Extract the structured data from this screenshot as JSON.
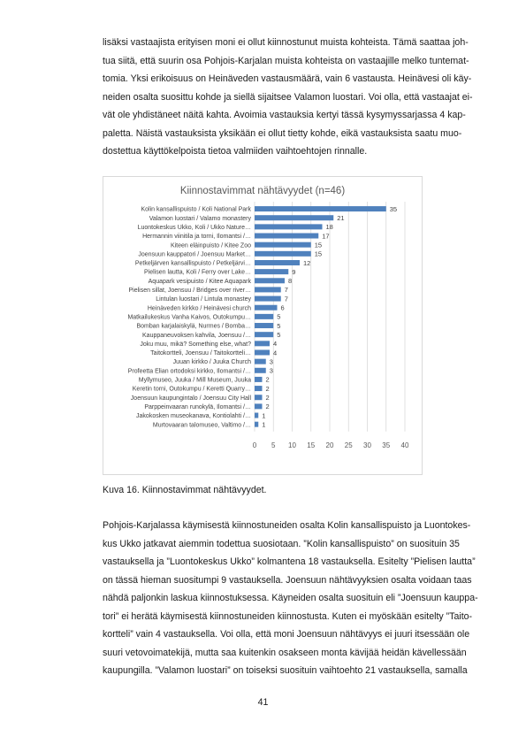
{
  "paragraph_1": [
    "lisäksi vastaajista erityisen moni ei ollut kiinnostunut muista kohteista. Tämä saattaa joh-",
    "tua siitä, että suurin osa Pohjois-Karjalan muista kohteista on vastaajille melko tuntemat-",
    "tomia. Yksi erikoisuus on Heinäveden vastausmäärä, vain 6 vastausta. Heinävesi oli käy-",
    "neiden osalta suosittu kohde ja siellä sijaitsee Valamon luostari. Voi olla, että vastaajat ei-",
    "vät ole yhdistäneet näitä kahta. Avoimia vastauksia kertyi tässä kysymyssarjassa 4 kap-",
    "paletta. Näistä vastauksista yksikään ei ollut tietty kohde, eikä vastauksista saatu muo-",
    "dostettua käyttökelpoista tietoa valmiiden vaihtoehtojen rinnalle."
  ],
  "caption": "Kuva 16. Kiinnostavimmat nähtävyydet.",
  "paragraph_2": [
    "Pohjois-Karjalassa käymisestä kiinnostuneiden osalta Kolin kansallispuisto ja Luontokes-",
    "kus Ukko jatkavat aiemmin todettua suosiotaan. ”Kolin kansallispuisto” on suosituin 35",
    "vastauksella ja ”Luontokeskus Ukko” kolmantena 18 vastauksella. Esitelty ”Pielisen lautta”",
    "on tässä hieman suositumpi 9 vastauksella. Joensuun nähtävyyksien osalta voidaan taas",
    "nähdä paljonkin laskua kiinnostuksessa. Käyneiden osalta suosituin eli ”Joensuun kauppa-",
    "tori” ei herätä käymisestä kiinnostuneiden kiinnostusta. Kuten ei myöskään esitelty ”Taito-",
    "kortteli” vain 4 vastauksella. Voi olla, että moni Joensuun nähtävyys ei juuri itsessään ole",
    "suuri vetovoimatekijä, mutta saa kuitenkin osakseen monta kävijää heidän kävellessään",
    "kaupungilla. ”Valamon luostari” on toiseksi suosituin vaihtoehto 21 vastauksella, samalla"
  ],
  "page_number": "41",
  "chart_data": {
    "type": "bar",
    "orientation": "horizontal",
    "title": "Kiinnostavimmat nähtävyydet (n=46)",
    "categories": [
      "Kolin kansallispuisto / Koli National Park",
      "Valamon luostari / Valamo monastery",
      "Luontokeskus Ukko, Koli / Ukko Nature…",
      "Hermannin viinitila ja torni, Ilomantsi /…",
      "Kiteen eläinpuisto / Kitee Zoo",
      "Joensuun kauppatori / Joensuu Market…",
      "Petkeljärven kansallispuisto / Petkeljärvi…",
      "Pielisen lautta, Koli / Ferry over Lake…",
      "Aquapark vesipuisto / Kitee Aquapark",
      "Pielisen sillat, Joensuu / Bridges over river…",
      "Lintulan luostari / Lintula monastey",
      "Heinäveden kirkko / Heinävesi church",
      "Matkailukeskus Vanha Kaivos, Outokumpu…",
      "Bomban karjalaiskylä, Nurmes / Bomba…",
      "Kauppaneuvoksen kahvila, Joensuu /…",
      "Joku muu, mikä? Something else, what?",
      "Taitokortteli, Joensuu / Taitokortteli…",
      "Juuan kirkko / Juuka Church",
      "Profeetta Elian ortodoksi kirkko, Ilomantsi /…",
      "Myllymuseo, Juuka / Mill Museum, Juuka",
      "Keretin torni, Outokumpu / Keretti Quarry…",
      "Joensuun kaupungintalo / Joensuu City Hall",
      "Parppeinvaaran runokylä, Ilomantsi /…",
      "Jakokosken museokanava, Kontiolahti /…",
      "Murtovaaran talomuseo, Valtimo /…"
    ],
    "values": [
      35,
      21,
      18,
      17,
      15,
      15,
      12,
      9,
      8,
      7,
      7,
      6,
      5,
      5,
      5,
      4,
      4,
      3,
      3,
      2,
      2,
      2,
      2,
      1,
      1
    ],
    "xlim": [
      0,
      40
    ],
    "xticks": [
      "0",
      "5",
      "10",
      "15",
      "20",
      "25",
      "30",
      "35",
      "40"
    ],
    "grid": true,
    "data_labels": true,
    "bar_color": "#4f81bd"
  }
}
